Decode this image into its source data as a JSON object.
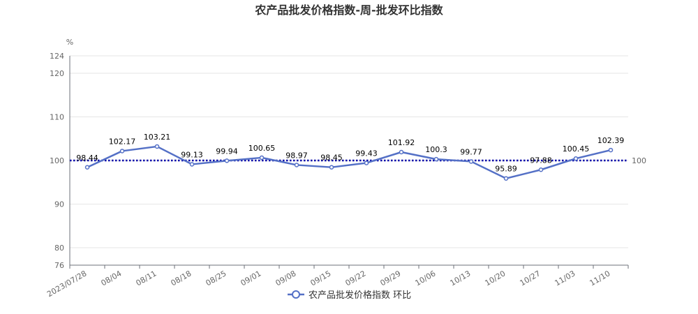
{
  "chart_data": {
    "type": "line",
    "title": "农产品批发价格指数-周-批发环比指数",
    "y_unit": "%",
    "ylim": [
      76,
      124
    ],
    "y_ticks": [
      "76",
      "80",
      "90",
      "100",
      "110",
      "120",
      "124"
    ],
    "categories": [
      "2023/07/28",
      "08/04",
      "08/11",
      "08/18",
      "08/25",
      "09/01",
      "09/08",
      "09/15",
      "09/22",
      "09/29",
      "10/06",
      "10/13",
      "10/20",
      "10/27",
      "11/03",
      "11/10"
    ],
    "series": [
      {
        "name": "农产品批发价格指数 环比",
        "color": "#5470c6",
        "values": [
          98.44,
          102.17,
          103.21,
          99.13,
          99.94,
          100.65,
          98.97,
          98.45,
          99.43,
          101.92,
          100.3,
          99.77,
          95.89,
          97.88,
          100.45,
          102.39
        ],
        "labels": [
          "98.44",
          "102.17",
          "103.21",
          "99.13",
          "99.94",
          "100.65",
          "98.97",
          "98.45",
          "99.43",
          "101.92",
          "100.3",
          "99.77",
          "95.89",
          "97.88",
          "100.45",
          "102.39"
        ]
      }
    ],
    "reference_line": {
      "value": 100,
      "label": "100",
      "color": "#0000aa",
      "style": "dotted"
    },
    "grid": true,
    "legend": "bottom-center"
  }
}
